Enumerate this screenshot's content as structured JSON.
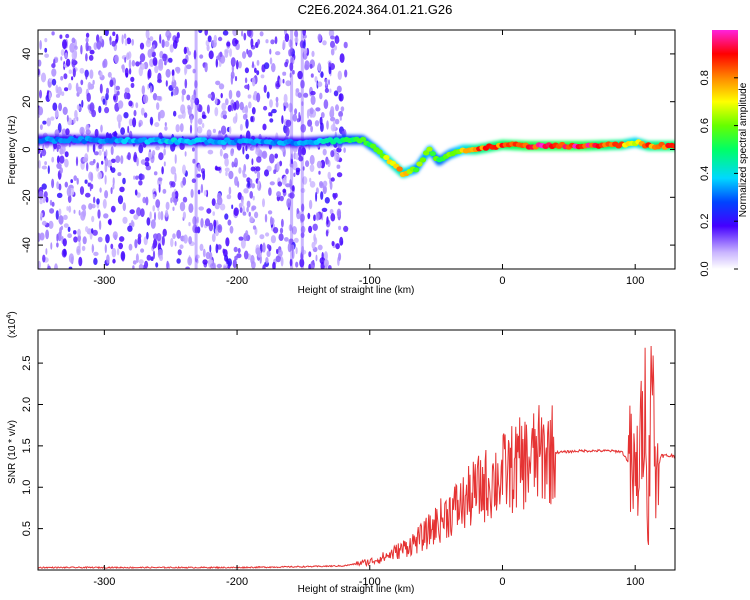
{
  "title": "C2E6.2024.364.01.21.G26",
  "colors": {
    "signal": "#e53333",
    "axis": "#000000",
    "background": "#ffffff"
  },
  "chart_data": [
    {
      "type": "heatmap",
      "title": "C2E6.2024.364.01.21.G26",
      "xlabel": "Height of straight line (km)",
      "ylabel": "Frequency (Hz)",
      "xlim": [
        -350,
        130
      ],
      "ylim": [
        -50,
        50
      ],
      "x_ticks": [
        {
          "value": -300,
          "label": "-300"
        },
        {
          "value": -200,
          "label": "-200"
        },
        {
          "value": -100,
          "label": "-100"
        },
        {
          "value": 0,
          "label": "0"
        },
        {
          "value": 100,
          "label": "100"
        }
      ],
      "y_ticks": [
        {
          "value": -40,
          "label": "-40"
        },
        {
          "value": -20,
          "label": "-20"
        },
        {
          "value": 0,
          "label": "0"
        },
        {
          "value": 20,
          "label": "20"
        },
        {
          "value": 40,
          "label": "40"
        }
      ],
      "colorbar": {
        "label": "Normalized spectral amplitude",
        "range": [
          0,
          1
        ],
        "colormap": "rainbow-white-to-magenta",
        "ticks": [
          {
            "value": 0.0,
            "label": "0.0"
          },
          {
            "value": 0.2,
            "label": "0.2"
          },
          {
            "value": 0.4,
            "label": "0.4"
          },
          {
            "value": 0.6,
            "label": "0.6"
          },
          {
            "value": 0.8,
            "label": "0.8"
          }
        ]
      },
      "ridge": {
        "x": [
          -350,
          -300,
          -250,
          -200,
          -150,
          -120,
          -105,
          -95,
          -85,
          -75,
          -65,
          -55,
          -48,
          -40,
          -30,
          -20,
          0,
          20,
          60,
          90,
          100,
          110,
          130
        ],
        "y": [
          4,
          4,
          3.5,
          3.5,
          3,
          4,
          4,
          0,
          -5,
          -10,
          -8,
          0,
          -5,
          -2,
          0,
          0,
          2,
          1.5,
          1.5,
          2,
          3,
          1.5,
          1.5
        ],
        "amplitude": [
          0.35,
          0.35,
          0.4,
          0.35,
          0.35,
          0.5,
          0.55,
          0.6,
          0.75,
          0.8,
          0.6,
          0.65,
          0.55,
          0.6,
          0.7,
          0.85,
          0.9,
          0.95,
          0.95,
          0.85,
          0.7,
          0.85,
          0.9
        ]
      },
      "noise_region_x": [
        -350,
        -118
      ]
    },
    {
      "type": "line",
      "xlabel": "Height of straight line (km)",
      "ylabel": "SNR (10 * v/v)",
      "scale_label": "(x10",
      "scale_exponent": "4",
      "xlim": [
        -350,
        130
      ],
      "ylim": [
        0,
        2.9
      ],
      "x_ticks": [
        {
          "value": -300,
          "label": "-300"
        },
        {
          "value": -200,
          "label": "-200"
        },
        {
          "value": -100,
          "label": "-100"
        },
        {
          "value": 0,
          "label": "0"
        },
        {
          "value": 100,
          "label": "100"
        }
      ],
      "y_ticks": [
        {
          "value": 0.5,
          "label": "0.5"
        },
        {
          "value": 1.0,
          "label": "1.0"
        },
        {
          "value": 1.5,
          "label": "1.5"
        },
        {
          "value": 2.0,
          "label": "2.0"
        },
        {
          "value": 2.5,
          "label": "2.5"
        }
      ],
      "series": [
        {
          "color": "#e53333",
          "x": [
            -350,
            -300,
            -250,
            -200,
            -150,
            -120,
            -100,
            -90,
            -80,
            -70,
            -60,
            -50,
            -40,
            -30,
            -20,
            -10,
            0,
            10,
            20,
            30,
            40,
            50,
            60,
            70,
            80,
            90,
            95,
            100,
            105,
            108,
            110,
            112,
            115,
            120,
            130
          ],
          "y": [
            0.03,
            0.03,
            0.03,
            0.03,
            0.04,
            0.05,
            0.1,
            0.15,
            0.22,
            0.3,
            0.4,
            0.55,
            0.7,
            0.8,
            0.95,
            1.05,
            1.15,
            1.25,
            1.33,
            1.4,
            1.42,
            1.43,
            1.44,
            1.44,
            1.44,
            1.43,
            1.3,
            1.0,
            1.6,
            2.2,
            0.4,
            2.9,
            1.2,
            1.38,
            1.38
          ]
        }
      ]
    }
  ]
}
